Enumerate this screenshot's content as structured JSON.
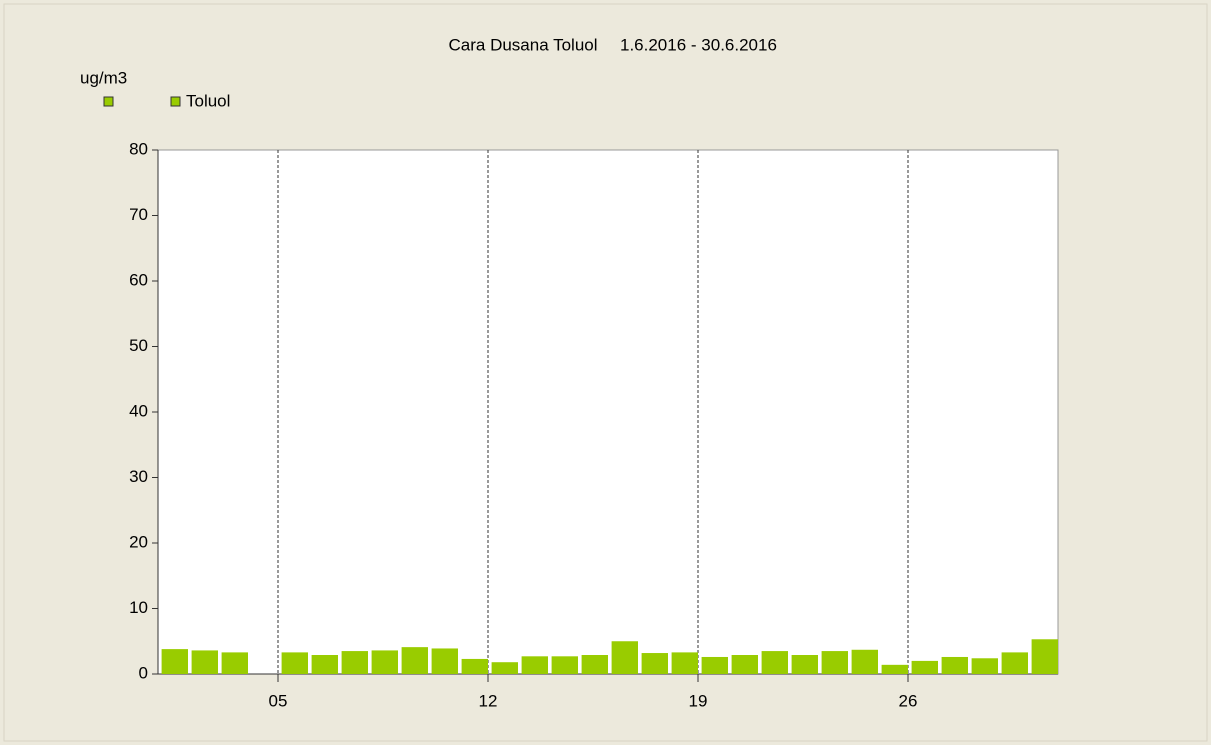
{
  "chart_data": {
    "type": "bar",
    "title": "Cara Dusana Toluol",
    "subtitle": "1.6.2016 - 30.6.2016",
    "y_label": "ug/m3",
    "series": [
      {
        "name": "Toluol",
        "color": "#99cc00",
        "x": [
          1,
          2,
          3,
          4,
          5,
          6,
          7,
          8,
          9,
          10,
          11,
          12,
          13,
          14,
          15,
          16,
          17,
          18,
          19,
          20,
          21,
          22,
          23,
          24,
          25,
          26,
          27,
          28,
          29,
          30
        ],
        "values": [
          3.8,
          3.6,
          3.3,
          null,
          3.3,
          2.9,
          3.5,
          3.6,
          4.1,
          3.9,
          2.3,
          1.8,
          2.7,
          2.7,
          2.9,
          5.0,
          3.2,
          3.3,
          2.6,
          2.9,
          3.5,
          2.9,
          3.5,
          3.7,
          1.4,
          2.0,
          2.6,
          2.4,
          3.3,
          5.3
        ]
      }
    ],
    "xlim": [
      1,
      31
    ],
    "xticks": [
      {
        "value": 5,
        "label": "05"
      },
      {
        "value": 12,
        "label": "12"
      },
      {
        "value": 19,
        "label": "19"
      },
      {
        "value": 26,
        "label": "26"
      }
    ],
    "ylim": [
      0,
      80
    ],
    "yticks": [
      0,
      10,
      20,
      30,
      40,
      50,
      60,
      70,
      80
    ],
    "grid": true
  }
}
